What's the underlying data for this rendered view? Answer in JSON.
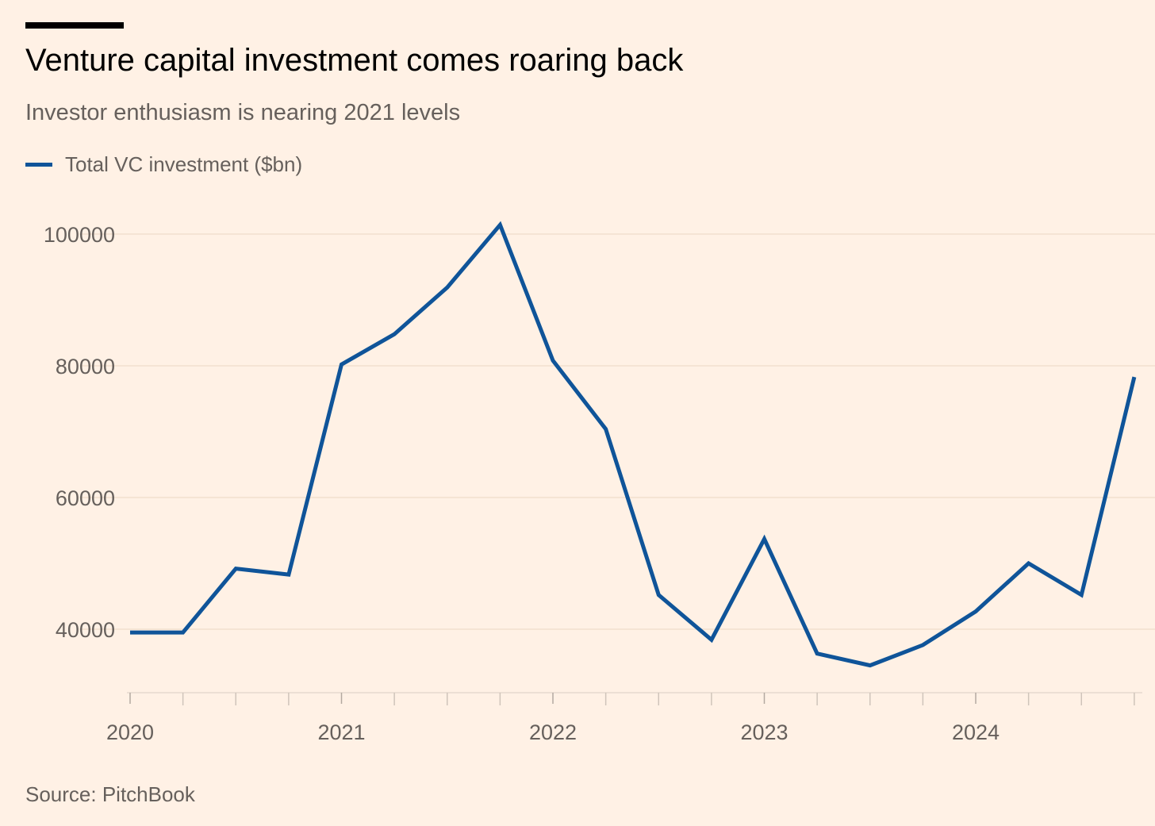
{
  "chart_data": {
    "type": "line",
    "title": "Venture capital investment comes roaring back",
    "subtitle": "Investor enthusiasm is nearing 2021 levels",
    "source": "Source: PitchBook",
    "legend": [
      "Total VC investment ($bn)"
    ],
    "legend_position": "top-left",
    "xlabel": "",
    "ylabel": "",
    "x_ticks": [
      "2020",
      "2021",
      "2022",
      "2023",
      "2024"
    ],
    "y_ticks": [
      40000,
      60000,
      80000,
      100000
    ],
    "y_tick_labels": [
      "40000",
      "60000",
      "80000",
      "100000"
    ],
    "ylim": [
      30400,
      103000
    ],
    "grid": true,
    "x": [
      "2020 Q1",
      "2020 Q2",
      "2020 Q3",
      "2020 Q4",
      "2021 Q1",
      "2021 Q2",
      "2021 Q3",
      "2021 Q4",
      "2022 Q1",
      "2022 Q2",
      "2022 Q3",
      "2022 Q4",
      "2023 Q1",
      "2023 Q2",
      "2023 Q3",
      "2023 Q4",
      "2024 Q1",
      "2024 Q2",
      "2024 Q3",
      "2024 Q4"
    ],
    "series": [
      {
        "name": "Total VC investment ($bn)",
        "color": "#0F5499",
        "values": [
          39500,
          39500,
          49200,
          48300,
          80200,
          84800,
          91900,
          101400,
          80800,
          70400,
          45200,
          38400,
          53700,
          36300,
          34500,
          37600,
          42700,
          50000,
          45200,
          78300
        ]
      }
    ]
  }
}
